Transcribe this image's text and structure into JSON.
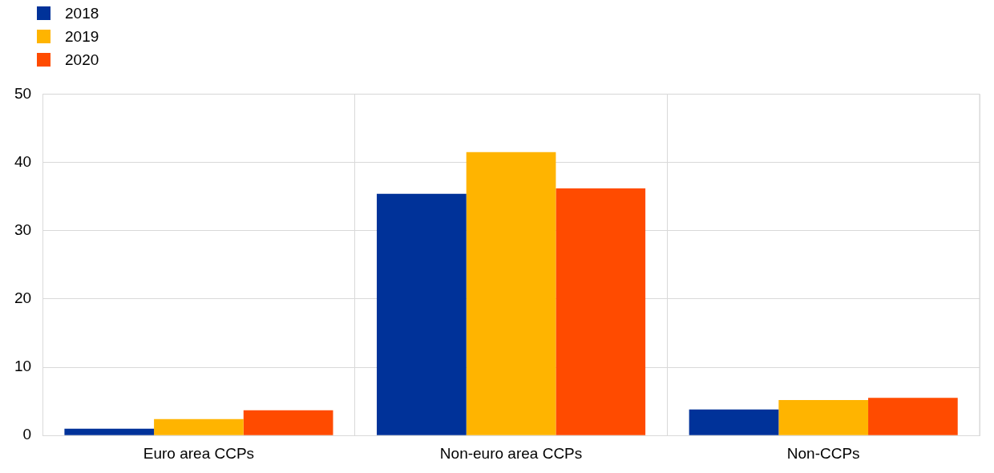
{
  "chart_data": {
    "type": "bar",
    "categories": [
      "Euro area CCPs",
      "Non-euro area CCPs",
      "Non-CCPs"
    ],
    "series": [
      {
        "name": "2018",
        "color": "#003299",
        "values": [
          1.0,
          35.4,
          3.8
        ]
      },
      {
        "name": "2019",
        "color": "#ffb400",
        "values": [
          2.4,
          41.5,
          5.2
        ]
      },
      {
        "name": "2020",
        "color": "#ff4b00",
        "values": [
          3.7,
          36.2,
          5.5
        ]
      }
    ],
    "ylim": [
      0,
      50
    ],
    "yticks": [
      0,
      10,
      20,
      30,
      40,
      50
    ],
    "grid": true,
    "legend": "top left"
  }
}
